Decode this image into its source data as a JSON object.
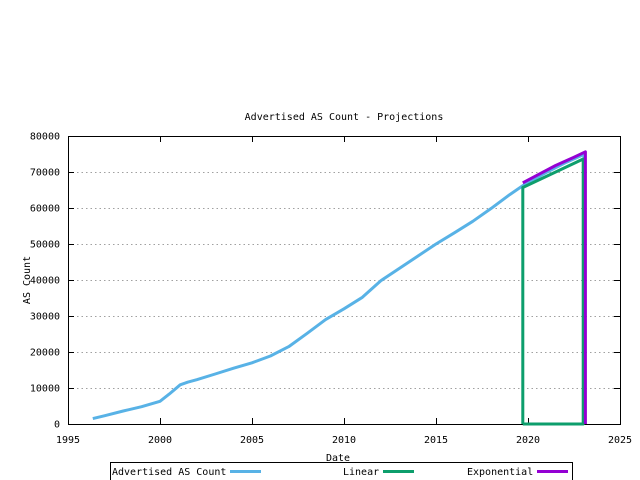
{
  "chart_data": {
    "type": "line",
    "title": "Advertised AS Count - Projections",
    "xlabel": "Date",
    "ylabel": "AS Count",
    "xlim": [
      1995,
      2025
    ],
    "ylim": [
      0,
      80000
    ],
    "xticks": [
      "1995",
      "2000",
      "2005",
      "2010",
      "2015",
      "2020",
      "2025"
    ],
    "xtick_values": [
      1995,
      2000,
      2005,
      2010,
      2015,
      2020,
      2025
    ],
    "yticks": [
      "0",
      "10000",
      "20000",
      "30000",
      "40000",
      "50000",
      "60000",
      "70000",
      "80000"
    ],
    "ytick_values": [
      0,
      10000,
      20000,
      30000,
      40000,
      50000,
      60000,
      70000,
      80000
    ],
    "grid": "horizontal-dashed",
    "grid_color": "#a0a0a0",
    "legend_position": "below-boxed",
    "series": [
      {
        "name": "Advertised AS Count",
        "color": "#58b2e6",
        "points": [
          [
            1996.35,
            1500
          ],
          [
            1997,
            2300
          ],
          [
            1998,
            3600
          ],
          [
            1999,
            4800
          ],
          [
            2000,
            6300
          ],
          [
            2000.5,
            8300
          ],
          [
            2001.1,
            10900
          ],
          [
            2001.5,
            11600
          ],
          [
            2002,
            12300
          ],
          [
            2003,
            13900
          ],
          [
            2004,
            15500
          ],
          [
            2005,
            17000
          ],
          [
            2006,
            18900
          ],
          [
            2007,
            21500
          ],
          [
            2008,
            25200
          ],
          [
            2009,
            29000
          ],
          [
            2010,
            32000
          ],
          [
            2011,
            35200
          ],
          [
            2012,
            39800
          ],
          [
            2013,
            43200
          ],
          [
            2014,
            46600
          ],
          [
            2015,
            50000
          ],
          [
            2016,
            53100
          ],
          [
            2017,
            56300
          ],
          [
            2018,
            59900
          ],
          [
            2019,
            63700
          ],
          [
            2019.75,
            66300
          ],
          [
            2020.3,
            67900
          ],
          [
            2021,
            69900
          ],
          [
            2022,
            72500
          ],
          [
            2023.05,
            74900
          ],
          [
            2023.05,
            56000
          ]
        ]
      },
      {
        "name": "Linear",
        "color": "#0d9e6c",
        "points": [
          [
            2019.72,
            0
          ],
          [
            2019.72,
            65700
          ],
          [
            2023.0,
            73600
          ],
          [
            2023.0,
            0
          ],
          [
            2019.72,
            0
          ]
        ]
      },
      {
        "name": "Exponential",
        "color": "#9400d3",
        "points": [
          [
            2019.72,
            67000
          ],
          [
            2020.5,
            69100
          ],
          [
            2021.5,
            71800
          ],
          [
            2022.5,
            74100
          ],
          [
            2023.12,
            75600
          ],
          [
            2023.12,
            0
          ]
        ]
      }
    ]
  }
}
